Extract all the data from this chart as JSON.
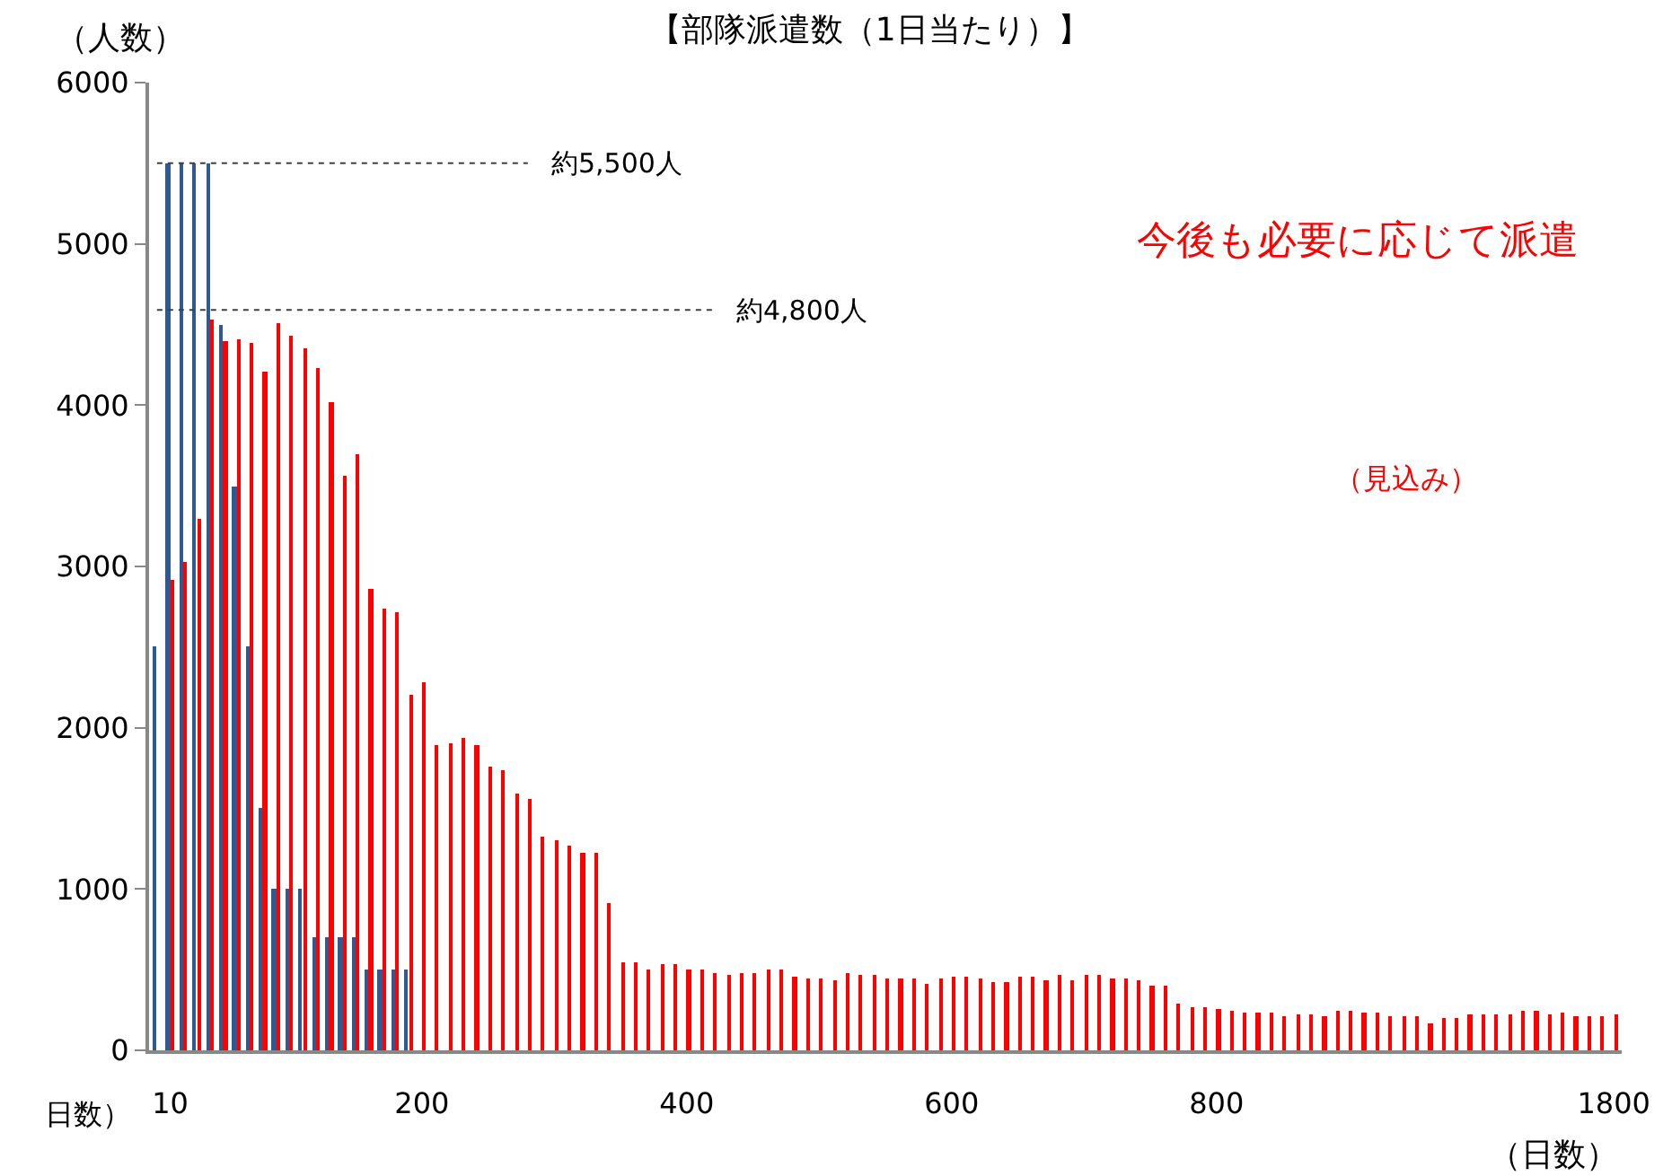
{
  "chart_data": {
    "type": "bar",
    "title": "【部隊派遣数（1日当たり）】",
    "ylabel": "（人数）",
    "xlabel": "（日数）",
    "categories": [
      null,
      "10",
      null,
      null,
      null,
      null,
      null,
      null,
      null,
      null,
      null,
      null,
      null,
      null,
      null,
      null,
      null,
      null,
      null,
      null,
      "200",
      null,
      null,
      null,
      null,
      null,
      null,
      null,
      null,
      null,
      null,
      null,
      null,
      null,
      null,
      null,
      null,
      null,
      null,
      null,
      "400",
      null,
      null,
      null,
      null,
      null,
      null,
      null,
      null,
      null,
      null,
      null,
      null,
      null,
      null,
      null,
      null,
      null,
      null,
      null,
      "600",
      null,
      null,
      null,
      null,
      null,
      null,
      null,
      null,
      null,
      null,
      null,
      null,
      null,
      null,
      null,
      null,
      null,
      null,
      null,
      "800",
      null,
      null,
      null,
      null,
      null,
      null,
      null,
      null,
      null,
      null,
      null,
      null,
      null,
      null,
      null,
      null,
      null,
      null,
      null,
      null,
      null,
      null,
      null,
      null,
      null,
      null,
      null,
      null,
      null,
      "1800"
    ],
    "series": [
      {
        "color": "#2e5a93",
        "values": [
          2500,
          5500,
          5500,
          5500,
          5500,
          4500,
          3500,
          2500,
          1500,
          1000,
          1000,
          1000,
          700,
          700,
          700,
          700,
          500,
          500,
          500,
          500,
          null,
          null,
          null,
          null,
          null,
          null,
          null,
          null,
          null,
          null,
          null,
          null,
          null,
          null,
          null,
          null,
          null,
          null,
          null,
          null,
          null,
          null,
          null,
          null,
          null,
          null,
          null,
          null,
          null,
          null,
          null,
          null,
          null,
          null,
          null,
          null,
          null,
          null,
          null,
          null,
          null,
          null,
          null,
          null,
          null,
          null,
          null,
          null,
          null,
          null,
          null,
          null,
          null,
          null,
          null,
          null,
          null,
          null,
          null,
          null,
          null,
          null,
          null,
          null,
          null,
          null,
          null,
          null,
          null,
          null,
          null,
          null,
          null,
          null,
          null,
          null,
          null,
          null,
          null,
          null,
          null,
          null,
          null,
          null,
          null,
          null,
          null,
          null,
          null,
          null,
          null
        ]
      },
      {
        "color": "#ff0000",
        "values": [
          null,
          2920,
          3030,
          3290,
          4530,
          4400,
          4410,
          4390,
          4210,
          4510,
          4430,
          4350,
          4230,
          4020,
          3560,
          3700,
          2860,
          2740,
          2720,
          2200,
          2280,
          1890,
          1900,
          1940,
          1890,
          1760,
          1740,
          1590,
          1560,
          1330,
          1300,
          1270,
          1220,
          1220,
          910,
          550,
          550,
          500,
          530,
          530,
          500,
          500,
          480,
          470,
          480,
          480,
          500,
          500,
          460,
          440,
          440,
          430,
          480,
          470,
          470,
          440,
          440,
          450,
          410,
          450,
          460,
          460,
          440,
          420,
          420,
          460,
          460,
          430,
          470,
          430,
          470,
          470,
          440,
          440,
          430,
          400,
          400,
          290,
          270,
          270,
          260,
          250,
          230,
          230,
          230,
          210,
          220,
          220,
          210,
          240,
          240,
          230,
          230,
          210,
          210,
          210,
          170,
          200,
          200,
          220,
          220,
          220,
          220,
          240,
          240,
          220,
          230,
          210,
          210,
          210,
          220
        ]
      }
    ],
    "ylim": [
      0,
      6000
    ],
    "yticks": [
      0,
      1000,
      2000,
      3000,
      4000,
      5000,
      6000
    ],
    "ref_lines": [
      {
        "axis": "y",
        "value": 5500,
        "label": "約5,500人",
        "color": "#404040",
        "line_style": "dotted"
      },
      {
        "axis": "y",
        "value": 4590,
        "label": "約4,800人",
        "color": "#404040",
        "line_style": "dotted"
      }
    ],
    "annotations": [
      "今後も必要に応じて派遣",
      "（見込み）",
      "日数）"
    ]
  }
}
